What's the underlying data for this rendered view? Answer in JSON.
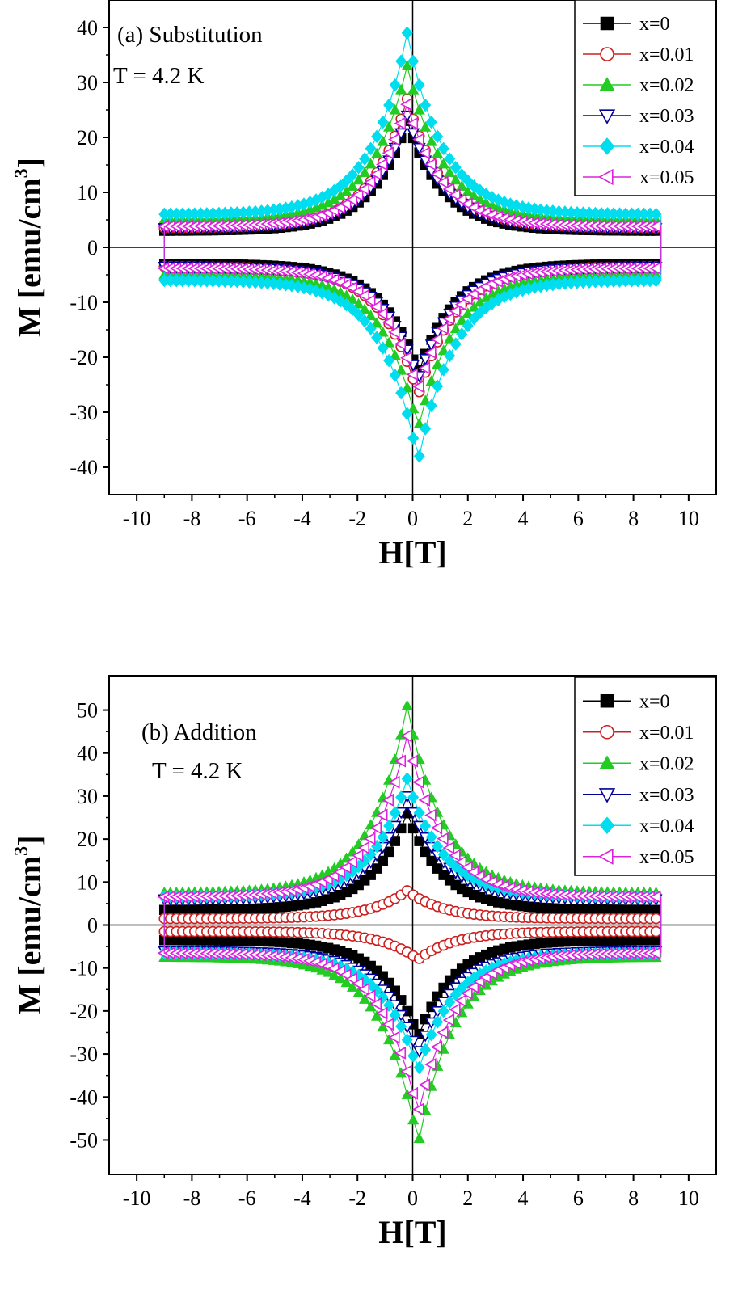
{
  "chart_data": [
    {
      "type": "scatter",
      "panel": "a",
      "annotation": "(a) Substitution",
      "temperature": "T = 4.2 K",
      "xlabel": "H[T]",
      "ylabel_main": "M [emu/cm",
      "ylabel_sup": "3",
      "ylabel_close": "]",
      "xlim": [
        -11,
        11
      ],
      "ylim": [
        -45,
        45
      ],
      "xticks": [
        -10,
        -8,
        -6,
        -4,
        -2,
        0,
        2,
        4,
        6,
        8,
        10
      ],
      "yticks": [
        -40,
        -30,
        -20,
        -10,
        0,
        10,
        20,
        30,
        40
      ],
      "legend_position": "top-right",
      "series": [
        {
          "name": "x=0",
          "color": "#000000",
          "marker": "square-filled",
          "peak": 23,
          "tail": 3,
          "sat": 3.2
        },
        {
          "name": "x=0.01",
          "color": "#cc2020",
          "marker": "circle-open",
          "peak": 27,
          "tail": 3.5,
          "sat": 3.8
        },
        {
          "name": "x=0.02",
          "color": "#22cc22",
          "marker": "triangle-up-filled",
          "peak": 33,
          "tail": 5,
          "sat": 4.8
        },
        {
          "name": "x=0.03",
          "color": "#000099",
          "marker": "triangle-down-open",
          "peak": 24,
          "tail": 3.5,
          "sat": 3.6
        },
        {
          "name": "x=0.04",
          "color": "#00ddee",
          "marker": "diamond-filled",
          "peak": 39,
          "tail": 6,
          "sat": 5.8
        },
        {
          "name": "x=0.05",
          "color": "#dd22dd",
          "marker": "triangle-left-open",
          "peak": 26,
          "tail": 3.8,
          "sat": 3.9
        }
      ]
    },
    {
      "type": "scatter",
      "panel": "b",
      "annotation": "(b) Addition",
      "temperature": "T = 4.2 K",
      "xlabel": "H[T]",
      "ylabel_main": "M [emu/cm",
      "ylabel_sup": "3",
      "ylabel_close": "]",
      "xlim": [
        -11,
        11
      ],
      "ylim": [
        -58,
        58
      ],
      "xticks": [
        -10,
        -8,
        -6,
        -4,
        -2,
        0,
        2,
        4,
        6,
        8,
        10
      ],
      "yticks": [
        -50,
        -40,
        -30,
        -20,
        -10,
        0,
        10,
        20,
        30,
        40,
        50
      ],
      "legend_position": "top-right",
      "series": [
        {
          "name": "x=0",
          "color": "#000000",
          "marker": "square-filled",
          "peak": 26,
          "tail": 3.5,
          "sat": 3.5
        },
        {
          "name": "x=0.01",
          "color": "#cc2020",
          "marker": "circle-open",
          "peak": 8,
          "tail": 1.5,
          "sat": 1.8
        },
        {
          "name": "x=0.02",
          "color": "#22cc22",
          "marker": "triangle-up-filled",
          "peak": 51,
          "tail": 7.5,
          "sat": 7.5
        },
        {
          "name": "x=0.03",
          "color": "#000099",
          "marker": "triangle-down-open",
          "peak": 30,
          "tail": 6,
          "sat": 6
        },
        {
          "name": "x=0.04",
          "color": "#00ddee",
          "marker": "diamond-filled",
          "peak": 34,
          "tail": 6.5,
          "sat": 6.2
        },
        {
          "name": "x=0.05",
          "color": "#dd22dd",
          "marker": "triangle-left-open",
          "peak": 44,
          "tail": 6.5,
          "sat": 6.5
        }
      ]
    }
  ]
}
